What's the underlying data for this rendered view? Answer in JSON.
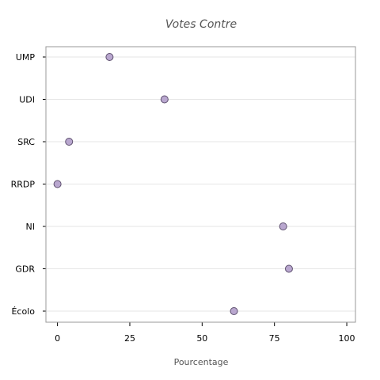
{
  "chart_data": {
    "type": "scatter",
    "title": "Votes Contre",
    "xlabel": "Pourcentage",
    "ylabel": "",
    "xlim": [
      -4,
      103
    ],
    "xticks": [
      0,
      25,
      50,
      75,
      100
    ],
    "categories": [
      "UMP",
      "UDI",
      "SRC",
      "RRDP",
      "NI",
      "GDR",
      "Écolo"
    ],
    "values": [
      18,
      37,
      4,
      0,
      78,
      80,
      61
    ],
    "grid": "horizontal",
    "legend": "none",
    "colors": {
      "point_fill": "#b9a7cf",
      "point_stroke": "#5d4f6e",
      "grid": "#e6e6e6",
      "frame": "#9a9a9a"
    }
  }
}
